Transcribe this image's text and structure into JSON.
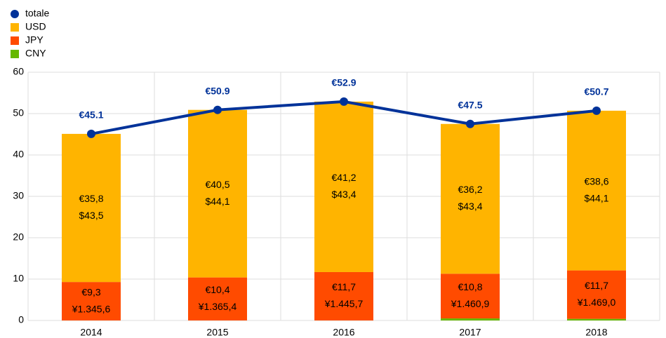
{
  "chart_data": {
    "type": "bar",
    "categories": [
      "2014",
      "2015",
      "2016",
      "2017",
      "2018"
    ],
    "series": [
      {
        "name": "totale",
        "type": "line",
        "color": "#003299",
        "values": [
          45.1,
          50.9,
          52.9,
          47.5,
          50.7
        ],
        "value_labels": [
          "€45.1",
          "€50.9",
          "€52.9",
          "€47.5",
          "€50.7"
        ]
      },
      {
        "name": "USD",
        "color": "#ffb400",
        "values": [
          35.8,
          40.5,
          41.2,
          36.2,
          38.6
        ],
        "value_labels": [
          "€35,8",
          "€40,5",
          "€41,2",
          "€36,2",
          "€38,6"
        ],
        "secondary_labels": [
          "$43,5",
          "$44,1",
          "$43,4",
          "$43,4",
          "$44,1"
        ]
      },
      {
        "name": "JPY",
        "color": "#ff4b00",
        "values": [
          9.3,
          10.4,
          11.7,
          10.8,
          11.7
        ],
        "value_labels": [
          "€9,3",
          "€10,4",
          "€11,7",
          "€10,8",
          "€11,7"
        ],
        "secondary_labels": [
          "¥1.345,6",
          "¥1.365,4",
          "¥1.445,7",
          "¥1.460,9",
          "¥1.469,0"
        ]
      },
      {
        "name": "CNY",
        "color": "#65b800",
        "values": [
          0,
          0,
          0,
          0.5,
          0.4
        ]
      }
    ],
    "ylim": [
      0,
      60
    ],
    "yticks": [
      0,
      10,
      20,
      30,
      40,
      50,
      60
    ],
    "grid": true,
    "legend": "top-left"
  }
}
